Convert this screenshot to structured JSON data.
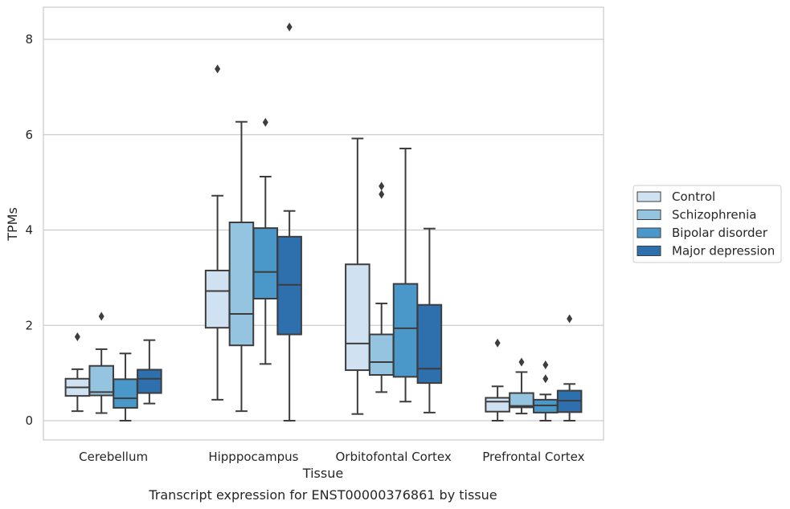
{
  "chart_data": {
    "type": "box",
    "title": "",
    "caption": "Transcript expression for ENST00000376861 by tissue",
    "xlabel": "Tissue",
    "ylabel": "TPMs",
    "ylim": [
      -0.4,
      8.7
    ],
    "yticks": [
      0,
      2,
      4,
      6,
      8
    ],
    "grid": true,
    "legend_position": "right",
    "categories": [
      "Cerebellum",
      "Hipppocampus",
      "Orbitofontal Cortex",
      "Prefrontal Cortex"
    ],
    "series": [
      {
        "name": "Control",
        "color": "#d0e1f2",
        "boxes": [
          {
            "whislo": 0.2,
            "q1": 0.52,
            "med": 0.7,
            "q3": 0.88,
            "whishi": 1.08,
            "fliers": [
              1.76
            ]
          },
          {
            "whislo": 0.44,
            "q1": 1.95,
            "med": 2.72,
            "q3": 3.15,
            "whishi": 4.72,
            "fliers": [
              7.38
            ]
          },
          {
            "whislo": 0.14,
            "q1": 1.06,
            "med": 1.62,
            "q3": 3.28,
            "whishi": 5.92,
            "fliers": []
          },
          {
            "whislo": 0.0,
            "q1": 0.19,
            "med": 0.4,
            "q3": 0.48,
            "whishi": 0.72,
            "fliers": [
              1.63
            ]
          }
        ]
      },
      {
        "name": "Schizophrenia",
        "color": "#94c4df",
        "boxes": [
          {
            "whislo": 0.16,
            "q1": 0.53,
            "med": 0.6,
            "q3": 1.15,
            "whishi": 1.5,
            "fliers": [
              2.19
            ]
          },
          {
            "whislo": 0.2,
            "q1": 1.58,
            "med": 2.24,
            "q3": 4.16,
            "whishi": 6.27,
            "fliers": []
          },
          {
            "whislo": 0.6,
            "q1": 0.96,
            "med": 1.23,
            "q3": 1.81,
            "whishi": 2.46,
            "fliers": [
              4.75,
              4.92
            ]
          },
          {
            "whislo": 0.15,
            "q1": 0.28,
            "med": 0.31,
            "q3": 0.58,
            "whishi": 1.02,
            "fliers": [
              1.23
            ]
          }
        ]
      },
      {
        "name": "Bipolar disorder",
        "color": "#4a98c9",
        "boxes": [
          {
            "whislo": 0.0,
            "q1": 0.27,
            "med": 0.47,
            "q3": 0.87,
            "whishi": 1.41,
            "fliers": []
          },
          {
            "whislo": 1.19,
            "q1": 2.56,
            "med": 3.12,
            "q3": 4.04,
            "whishi": 5.12,
            "fliers": [
              6.26
            ]
          },
          {
            "whislo": 0.4,
            "q1": 0.92,
            "med": 1.94,
            "q3": 2.87,
            "whishi": 5.71,
            "fliers": []
          },
          {
            "whislo": 0.0,
            "q1": 0.17,
            "med": 0.32,
            "q3": 0.44,
            "whishi": 0.55,
            "fliers": [
              0.88,
              1.17
            ]
          }
        ]
      },
      {
        "name": "Major depression",
        "color": "#2e6fae",
        "boxes": [
          {
            "whislo": 0.36,
            "q1": 0.58,
            "med": 0.88,
            "q3": 1.07,
            "whishi": 1.69,
            "fliers": []
          },
          {
            "whislo": 0.0,
            "q1": 1.81,
            "med": 2.85,
            "q3": 3.86,
            "whishi": 4.4,
            "fliers": [
              8.26
            ]
          },
          {
            "whislo": 0.17,
            "q1": 0.79,
            "med": 1.09,
            "q3": 2.43,
            "whishi": 4.03,
            "fliers": []
          },
          {
            "whislo": 0.0,
            "q1": 0.18,
            "med": 0.42,
            "q3": 0.63,
            "whishi": 0.77,
            "fliers": [
              2.14
            ]
          }
        ]
      }
    ]
  }
}
